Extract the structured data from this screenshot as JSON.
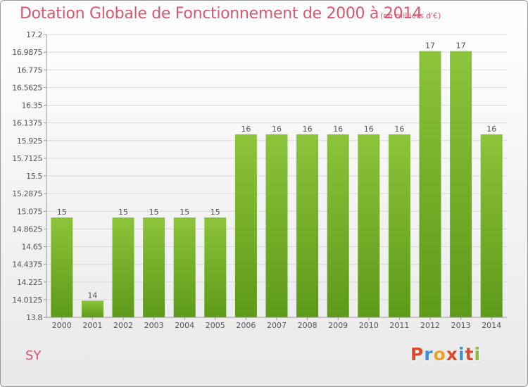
{
  "header": {
    "title": "Dotation Globale de Fonctionnement de 2000 à 2014",
    "unit_note": "(en milliers d'€)"
  },
  "footer": {
    "commune": "SY",
    "logo_text": "Proxiti",
    "logo_letter_colors": [
      "#e0482c",
      "#3a8fd8",
      "#f0a020",
      "#e0482c",
      "#3a8fd8",
      "#e0482c",
      "#8cbf2f"
    ]
  },
  "chart_data": {
    "type": "bar",
    "categories": [
      "2000",
      "2001",
      "2002",
      "2003",
      "2004",
      "2005",
      "2006",
      "2007",
      "2008",
      "2009",
      "2010",
      "2011",
      "2012",
      "2013",
      "2014"
    ],
    "values": [
      15,
      14,
      15,
      15,
      15,
      15,
      16,
      16,
      16,
      16,
      16,
      16,
      17,
      17,
      16
    ],
    "value_labels": [
      "15",
      "14",
      "15",
      "15",
      "15",
      "15",
      "16",
      "16",
      "16",
      "16",
      "16",
      "16",
      "17",
      "17",
      "16"
    ],
    "y_ticks": [
      13.8,
      14.0125,
      14.225,
      14.4375,
      14.65,
      14.8625,
      15.075,
      15.2875,
      15.5,
      15.7125,
      15.925,
      16.1375,
      16.35,
      16.5625,
      16.775,
      16.9875,
      17.2
    ],
    "y_tick_labels": [
      "13.8",
      "14.0125",
      "14.225",
      "14.4375",
      "14.65",
      "14.8625",
      "15.075",
      "15.2875",
      "15.5",
      "15.7125",
      "15.925",
      "16.1375",
      "16.35",
      "16.5625",
      "16.775",
      "16.9875",
      "17.2"
    ],
    "ylim": [
      13.8,
      17.2
    ],
    "grid": true,
    "colors": {
      "bar": "#8cc43a",
      "bar_dark": "#5d9a19",
      "grid": "#d8d8d8",
      "axis": "#999999",
      "text": "#555555"
    }
  }
}
